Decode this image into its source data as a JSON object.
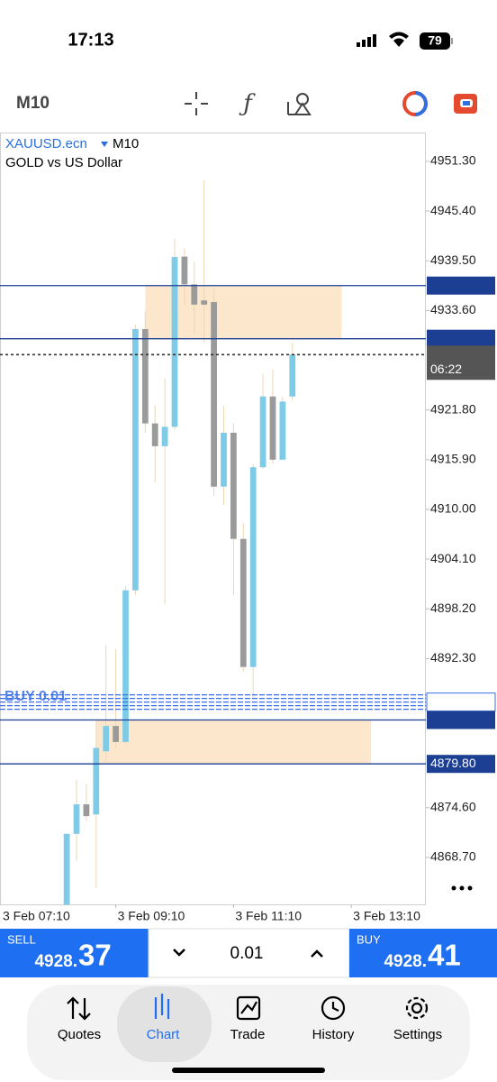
{
  "status_bar": {
    "time": "17:13",
    "battery": "79"
  },
  "toolbar": {
    "timeframe": "M10"
  },
  "chart_data": {
    "type": "candlestick",
    "symbol": "XAUUSD.ecn",
    "timeframe": "M10",
    "description": "GOLD vs US Dollar",
    "bull_color": "#7ecbe8",
    "bear_color": "#9a9a9a",
    "wick_color": "#ecd6b4",
    "xlim": [
      -6.8,
      36.6
    ],
    "xticks": [
      {
        "value": -7,
        "label": "3 Feb 07:10"
      },
      {
        "value": 5,
        "label": "3 Feb 09:10"
      },
      {
        "value": 17,
        "label": "3 Feb 11:10"
      },
      {
        "value": 29,
        "label": "3 Feb 13:10"
      }
    ],
    "ylim": [
      4863.13,
      4954.72
    ],
    "yticks": [
      {
        "value": 4951.3,
        "label": "4951.30"
      },
      {
        "value": 4945.4,
        "label": "4945.40"
      },
      {
        "value": 4939.5,
        "label": "4939.50"
      },
      {
        "value": 4933.6,
        "label": "4933.60"
      },
      {
        "value": 4921.8,
        "label": "4921.80"
      },
      {
        "value": 4915.9,
        "label": "4915.90"
      },
      {
        "value": 4910,
        "label": "4910.00"
      },
      {
        "value": 4904.1,
        "label": "4904.10"
      },
      {
        "value": 4898.2,
        "label": "4898.20"
      },
      {
        "value": 4892.3,
        "label": "4892.30"
      },
      {
        "value": 4874.6,
        "label": "4874.60"
      },
      {
        "value": 4868.7,
        "label": "4868.70"
      }
    ],
    "open": [
      4863.1,
      4871.5,
      4875.0,
      4873.8,
      4881.3,
      4884.3,
      4882.4,
      4900.4,
      4931.4,
      4920.2,
      4917.5,
      4919.8,
      4940.0,
      4936.7,
      4934.8,
      4934.6,
      4912.7,
      4919.1,
      4906.5,
      4891.3,
      4915.0,
      4923.4,
      4915.9,
      4923.4
    ],
    "high": [
      4871.5,
      4877.9,
      4877.4,
      4884.9,
      4893.9,
      4893.4,
      4900.9,
      4931.9,
      4933.5,
      4922.3,
      4925.5,
      4942.1,
      4941.0,
      4939.4,
      4949.05,
      4936.2,
      4922.3,
      4920.2,
      4908.4,
      4915.4,
      4926.1,
      4926.6,
      4923.4,
      4929.8
    ],
    "low": [
      4863.1,
      4868.3,
      4873.1,
      4865.1,
      4880.0,
      4881.7,
      4882.2,
      4899.8,
      4919.1,
      4913.2,
      4898.8,
      4919.5,
      4934.1,
      4930.9,
      4929.8,
      4911.6,
      4910.5,
      4899.8,
      4890.7,
      4887.5,
      4914.8,
      4915.4,
      4915.9,
      4922.9
    ],
    "close": [
      4871.5,
      4875.0,
      4873.6,
      4881.7,
      4884.3,
      4882.4,
      4900.4,
      4931.4,
      4920.2,
      4917.5,
      4919.8,
      4939.96,
      4936.7,
      4934.3,
      4934.3,
      4912.7,
      4919.1,
      4906.5,
      4891.3,
      4915.0,
      4923.4,
      4915.9,
      4922.8,
      4928.37
    ],
    "zones": [
      {
        "from": 4930.25,
        "to": 4936.56,
        "start": 8,
        "end": 28,
        "color": "#fde7cc"
      },
      {
        "from": 4879.8,
        "to": 4885.01,
        "start": 3,
        "end": 31,
        "color": "#fde7cc"
      }
    ],
    "levels": [
      {
        "value": 4936.56,
        "style": "solid",
        "color": "#1c3f94"
      },
      {
        "value": 4930.25,
        "style": "solid",
        "color": "#1c3f94"
      },
      {
        "value": 4928.37,
        "style": "dotted",
        "color": "#333333"
      },
      {
        "value": 4887.14,
        "style": "dashed",
        "color": "#3a6ee8"
      },
      {
        "value": 4885.01,
        "style": "solid",
        "color": "#1c3f94"
      },
      {
        "value": 4879.8,
        "label": "4879.80",
        "style": "solid",
        "color": "#1c3f94"
      }
    ],
    "order_label": "BUY 0.01",
    "countdown": "06:22"
  },
  "trade_panel": {
    "sell": {
      "label": "SELL",
      "price_main": "4928.",
      "price_big": "37"
    },
    "lot": "0.01",
    "buy": {
      "label": "BUY",
      "price_main": "4928.",
      "price_big": "41"
    }
  },
  "nav": [
    "Quotes",
    "Chart",
    "Trade",
    "History",
    "Settings"
  ]
}
